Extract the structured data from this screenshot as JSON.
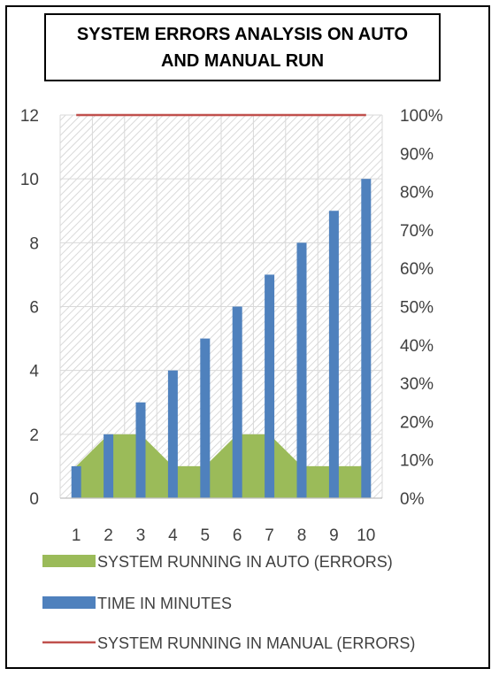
{
  "chart_data": {
    "type": "bar",
    "title": "SYSTEM ERRORS ANALYSIS ON AUTO AND MANUAL RUN",
    "categories": [
      "1",
      "2",
      "3",
      "4",
      "5",
      "6",
      "7",
      "8",
      "9",
      "10"
    ],
    "y_left": {
      "min": 0,
      "max": 12,
      "ticks": [
        "0",
        "2",
        "4",
        "6",
        "8",
        "10",
        "12"
      ]
    },
    "y_right": {
      "min": 0,
      "max": 100,
      "ticks": [
        "0%",
        "10%",
        "20%",
        "30%",
        "40%",
        "50%",
        "60%",
        "70%",
        "80%",
        "90%",
        "100%"
      ]
    },
    "grid": true,
    "background_pattern": "diagonal-hatch",
    "legend_position": "bottom",
    "series": [
      {
        "name": "SYSTEM RUNNING IN AUTO (ERRORS)",
        "kind": "area",
        "axis": "left",
        "color": "#9bbb59",
        "values": [
          1,
          2,
          2,
          1,
          1,
          2,
          2,
          1,
          1,
          1
        ]
      },
      {
        "name": "TIME IN MINUTES",
        "kind": "bar",
        "axis": "left",
        "color": "#4f81bd",
        "values": [
          1,
          2,
          3,
          4,
          5,
          6,
          7,
          8,
          9,
          10
        ]
      },
      {
        "name": "SYSTEM RUNNING IN MANUAL (ERRORS)",
        "kind": "line",
        "axis": "right",
        "color": "#c0504d",
        "values": [
          100,
          100,
          100,
          100,
          100,
          100,
          100,
          100,
          100,
          100
        ]
      }
    ]
  }
}
